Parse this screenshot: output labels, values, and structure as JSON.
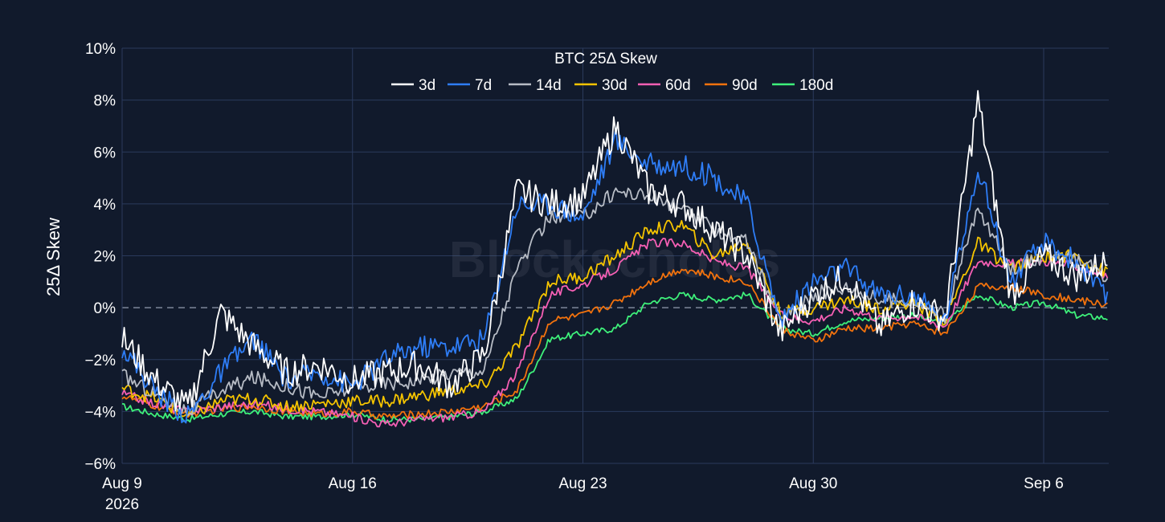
{
  "chart_data": {
    "type": "line",
    "title": "BTC 25Δ Skew",
    "ylabel": "25Δ Skew",
    "xlabel": "",
    "watermark": "Blockscholes",
    "x_range": [
      "2026-08-09",
      "2026-09-08"
    ],
    "ylim": [
      -6,
      10
    ],
    "y_ticks": [
      -6,
      -4,
      -2,
      0,
      2,
      4,
      6,
      8,
      10
    ],
    "y_tick_labels": [
      "−6%",
      "−4%",
      "−2%",
      "0%",
      "2%",
      "4%",
      "6%",
      "8%",
      "10%"
    ],
    "x_ticks": [
      {
        "date": "2026-08-09",
        "label": "Aug 9",
        "sublabel": "2026"
      },
      {
        "date": "2026-08-16",
        "label": "Aug 16",
        "sublabel": ""
      },
      {
        "date": "2026-08-23",
        "label": "Aug 23",
        "sublabel": ""
      },
      {
        "date": "2026-08-30",
        "label": "Aug 30",
        "sublabel": ""
      },
      {
        "date": "2026-09-06",
        "label": "Sep 6",
        "sublabel": ""
      }
    ],
    "grid": true,
    "zero_line": "dashed",
    "legend_position": "top-center",
    "x_dates": [
      "2026-08-09",
      "2026-08-10",
      "2026-08-11",
      "2026-08-12",
      "2026-08-13",
      "2026-08-14",
      "2026-08-15",
      "2026-08-16",
      "2026-08-17",
      "2026-08-18",
      "2026-08-19",
      "2026-08-20",
      "2026-08-21",
      "2026-08-22",
      "2026-08-23",
      "2026-08-24",
      "2026-08-25",
      "2026-08-26",
      "2026-08-27",
      "2026-08-28",
      "2026-08-29",
      "2026-08-30",
      "2026-08-31",
      "2026-09-01",
      "2026-09-02",
      "2026-09-03",
      "2026-09-04",
      "2026-09-05",
      "2026-09-06",
      "2026-09-07",
      "2026-09-08"
    ],
    "series": [
      {
        "name": "3d",
        "color": "#ffffff",
        "values": [
          -1.2,
          -2.8,
          -3.9,
          -0.2,
          -1.5,
          -2.5,
          -2.2,
          -2.8,
          -2.5,
          -2.2,
          -3.0,
          -1.8,
          4.5,
          4.0,
          4.2,
          7.0,
          4.5,
          4.0,
          3.0,
          2.0,
          -1.0,
          0.5,
          1.2,
          -0.8,
          0.2,
          -0.4,
          8.0,
          0.5,
          2.0,
          1.2,
          1.8
        ]
      },
      {
        "name": "7d",
        "color": "#2e7df6",
        "values": [
          -1.5,
          -3.2,
          -4.2,
          -2.5,
          -1.2,
          -2.8,
          -2.5,
          -3.0,
          -2.0,
          -1.5,
          -1.5,
          -1.2,
          4.0,
          4.0,
          3.5,
          6.5,
          5.5,
          5.5,
          5.0,
          4.0,
          -0.5,
          1.0,
          1.5,
          0.5,
          0.5,
          -0.5,
          5.5,
          1.0,
          2.5,
          1.8,
          0.2
        ]
      },
      {
        "name": "14d",
        "color": "#b7bcc5",
        "values": [
          -2.6,
          -3.3,
          -4.0,
          -3.2,
          -2.7,
          -3.0,
          -3.4,
          -3.1,
          -2.9,
          -2.8,
          -2.5,
          -2.4,
          1.5,
          3.5,
          3.5,
          4.5,
          4.3,
          3.8,
          3.0,
          2.5,
          -0.5,
          0.5,
          0.8,
          0.3,
          0.3,
          -0.3,
          3.8,
          1.5,
          2.0,
          1.8,
          1.2
        ]
      },
      {
        "name": "30d",
        "color": "#f5c400",
        "values": [
          -3.1,
          -3.5,
          -4.2,
          -3.6,
          -3.5,
          -3.8,
          -3.7,
          -3.6,
          -3.6,
          -3.4,
          -3.2,
          -3.0,
          -1.5,
          1.0,
          1.2,
          2.0,
          3.0,
          3.2,
          2.0,
          2.5,
          -0.2,
          0.0,
          0.3,
          0.0,
          0.2,
          -0.5,
          2.5,
          1.5,
          2.0,
          2.0,
          1.3
        ]
      },
      {
        "name": "60d",
        "color": "#f55fb4",
        "values": [
          -3.3,
          -3.7,
          -4.0,
          -3.8,
          -3.7,
          -3.9,
          -4.0,
          -4.2,
          -4.5,
          -4.3,
          -4.2,
          -4.0,
          -2.5,
          0.5,
          0.9,
          1.5,
          2.5,
          2.5,
          1.8,
          1.5,
          -0.3,
          -0.5,
          0.0,
          -0.4,
          -0.3,
          -0.7,
          1.8,
          1.7,
          1.8,
          1.6,
          1.2
        ]
      },
      {
        "name": "90d",
        "color": "#f2720d",
        "values": [
          -3.4,
          -3.8,
          -4.1,
          -3.9,
          -3.8,
          -4.0,
          -4.1,
          -4.0,
          -4.2,
          -4.1,
          -4.0,
          -3.8,
          -3.2,
          -0.5,
          -0.3,
          0.2,
          1.0,
          1.5,
          1.2,
          1.0,
          -0.8,
          -1.3,
          -0.8,
          -0.8,
          -0.6,
          -1.0,
          0.8,
          0.8,
          0.5,
          0.3,
          0.1
        ]
      },
      {
        "name": "180d",
        "color": "#3ef07a",
        "values": [
          -3.8,
          -4.1,
          -4.3,
          -4.1,
          -4.0,
          -4.2,
          -4.2,
          -4.1,
          -4.3,
          -4.3,
          -4.2,
          -4.0,
          -3.5,
          -1.2,
          -1.0,
          -0.8,
          0.2,
          0.5,
          0.3,
          0.5,
          -0.8,
          -1.0,
          -0.5,
          -0.4,
          -0.3,
          -0.6,
          0.5,
          0.0,
          0.2,
          -0.3,
          -0.4
        ]
      }
    ]
  }
}
